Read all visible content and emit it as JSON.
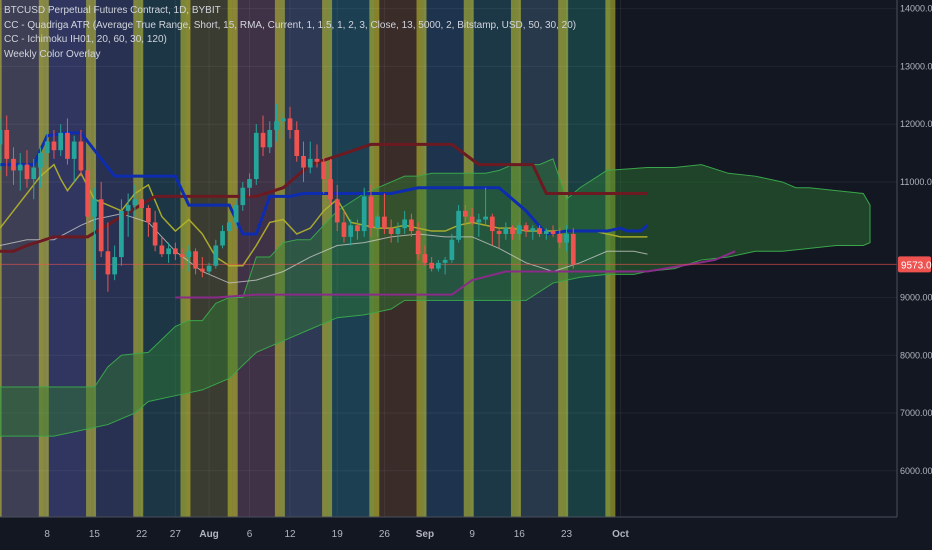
{
  "legend": {
    "title": "BTCUSD Perpetual Futures Contract, 1D, BYBIT",
    "indicator1": "CC - Quadriga ATR (Average True Range, Short, 15, RMA, Current, 1, 1.5, 1, 2, 3, Close, 13, 5000, 2, Bitstamp, USD, 50, 30, 20)",
    "indicator2": "CC - Ichimoku IH01, 20, 60, 30, 120)",
    "indicator3": "Weekly Color Overlay"
  },
  "colors": {
    "background": "#131722",
    "up_candle": "#26a69a",
    "down_candle": "#ef5350",
    "baseline": "#0d2cb0",
    "trend": "#6b1a22",
    "lower_band": "#8a2b8a",
    "cloud": "#2e7d32",
    "yellow_band": "#c8c830",
    "price_label": "#ef5350"
  },
  "chart_data": {
    "type": "candlestick",
    "x_tick_labels": [
      "8",
      "15",
      "22",
      "27",
      "Aug",
      "6",
      "12",
      "19",
      "26",
      "Sep",
      "9",
      "16",
      "23",
      "Oct"
    ],
    "y_tick_labels": [
      "14000.00",
      "13000.00",
      "12000.00",
      "11000.00",
      "9000.00",
      "8000.00",
      "7000.00",
      "6000.00"
    ],
    "y_ticks": [
      14000,
      13000,
      12000,
      11000,
      9000,
      8000,
      7000,
      6000
    ],
    "ylim": [
      5200,
      14150
    ],
    "xlim": [
      0,
      133
    ],
    "x_ticks": [
      7,
      14,
      21,
      26,
      31,
      37,
      43,
      50,
      57,
      63,
      70,
      77,
      84,
      92
    ],
    "last_price_label": "9573.00",
    "last_price": 9573,
    "candles": [
      [
        11650,
        12100,
        11200,
        11900
      ],
      [
        11900,
        12150,
        11100,
        11400
      ],
      [
        11400,
        11600,
        10950,
        11200
      ],
      [
        11200,
        11500,
        10850,
        11300
      ],
      [
        11300,
        11550,
        10900,
        11050
      ],
      [
        11050,
        11400,
        10700,
        11250
      ],
      [
        11250,
        11600,
        10900,
        11500
      ],
      [
        11500,
        11900,
        11300,
        11700
      ],
      [
        11700,
        11900,
        11400,
        11550
      ],
      [
        11550,
        12000,
        11450,
        11850
      ],
      [
        11850,
        12100,
        11300,
        11400
      ],
      [
        11400,
        11800,
        11000,
        11700
      ],
      [
        11700,
        11900,
        11100,
        11200
      ],
      [
        11200,
        11450,
        10200,
        10400
      ],
      [
        10400,
        10900,
        9300,
        10700
      ],
      [
        10700,
        11000,
        9700,
        9800
      ],
      [
        9800,
        10300,
        9100,
        9400
      ],
      [
        9400,
        9900,
        9300,
        9700
      ],
      [
        9700,
        10700,
        9550,
        10500
      ],
      [
        10500,
        10800,
        10050,
        10600
      ],
      [
        10600,
        10950,
        10400,
        10700
      ],
      [
        10700,
        10900,
        10400,
        10550
      ],
      [
        10550,
        10600,
        10050,
        10300
      ],
      [
        10300,
        10500,
        9800,
        9900
      ],
      [
        9900,
        10050,
        9700,
        9750
      ],
      [
        9750,
        9950,
        9600,
        9850
      ],
      [
        9850,
        9950,
        9650,
        9750
      ],
      [
        9750,
        9850,
        9500,
        9700
      ],
      [
        9700,
        9900,
        9450,
        9800
      ],
      [
        9800,
        9850,
        9400,
        9500
      ],
      [
        9500,
        9700,
        9350,
        9450
      ],
      [
        9450,
        9600,
        9400,
        9550
      ],
      [
        9550,
        10000,
        9500,
        9900
      ],
      [
        9900,
        10250,
        9850,
        10150
      ],
      [
        10150,
        10450,
        10000,
        10300
      ],
      [
        10300,
        10700,
        10200,
        10600
      ],
      [
        10600,
        11000,
        10500,
        10900
      ],
      [
        10900,
        11150,
        10750,
        11050
      ],
      [
        11050,
        12000,
        10950,
        11850
      ],
      [
        11850,
        12150,
        11450,
        11600
      ],
      [
        11600,
        12050,
        11500,
        11900
      ],
      [
        11900,
        12350,
        11700,
        12050
      ],
      [
        12050,
        12200,
        11750,
        12100
      ],
      [
        12100,
        12300,
        11750,
        11900
      ],
      [
        11900,
        12050,
        11350,
        11450
      ],
      [
        11450,
        11700,
        11000,
        11250
      ],
      [
        11250,
        11700,
        11150,
        11400
      ],
      [
        11400,
        11650,
        11250,
        11350
      ],
      [
        11350,
        11450,
        10800,
        11050
      ],
      [
        11050,
        11400,
        10600,
        10700
      ],
      [
        10700,
        10950,
        10150,
        10300
      ],
      [
        10300,
        10500,
        9950,
        10050
      ],
      [
        10050,
        10350,
        9900,
        10250
      ],
      [
        10250,
        10350,
        10000,
        10150
      ],
      [
        10150,
        10900,
        10050,
        10750
      ],
      [
        10750,
        10950,
        10050,
        10200
      ],
      [
        10200,
        10450,
        10050,
        10400
      ],
      [
        10400,
        10800,
        10100,
        10200
      ],
      [
        10200,
        10350,
        9950,
        10100
      ],
      [
        10100,
        10300,
        9950,
        10200
      ],
      [
        10200,
        10500,
        10100,
        10350
      ],
      [
        10350,
        10450,
        10050,
        10150
      ],
      [
        10150,
        10300,
        9650,
        9750
      ],
      [
        9750,
        9900,
        9550,
        9600
      ],
      [
        9600,
        9700,
        9450,
        9500
      ],
      [
        9500,
        9650,
        9450,
        9600
      ],
      [
        9600,
        9700,
        9400,
        9650
      ],
      [
        9650,
        10100,
        9600,
        10000
      ],
      [
        10000,
        10600,
        9950,
        10500
      ],
      [
        10500,
        10600,
        10250,
        10400
      ],
      [
        10400,
        10550,
        10250,
        10300
      ],
      [
        10300,
        10450,
        10050,
        10350
      ],
      [
        10350,
        10900,
        10250,
        10400
      ],
      [
        10400,
        10450,
        9900,
        10150
      ],
      [
        10150,
        10200,
        9850,
        10100
      ],
      [
        10100,
        10300,
        10000,
        10200
      ],
      [
        10200,
        10250,
        10000,
        10100
      ],
      [
        10100,
        10300,
        10000,
        10250
      ],
      [
        10250,
        10300,
        10050,
        10150
      ],
      [
        10150,
        10250,
        10000,
        10200
      ],
      [
        10200,
        10250,
        10050,
        10100
      ],
      [
        10100,
        10200,
        10000,
        10150
      ],
      [
        10150,
        10250,
        10050,
        10100
      ],
      [
        10100,
        10200,
        9850,
        9950
      ],
      [
        9950,
        10250,
        9800,
        10100
      ],
      [
        10100,
        10200,
        9500,
        9573
      ]
    ],
    "baseline": [
      [
        0,
        11300
      ],
      [
        5,
        11300
      ],
      [
        7,
        11800
      ],
      [
        10,
        11850
      ],
      [
        12,
        11850
      ],
      [
        17,
        11100
      ],
      [
        20,
        11100
      ],
      [
        21,
        11100
      ],
      [
        22,
        11100
      ],
      [
        26,
        11100
      ],
      [
        28,
        10600
      ],
      [
        34,
        10600
      ],
      [
        36,
        10100
      ],
      [
        38,
        10100
      ],
      [
        40,
        10750
      ],
      [
        43,
        10750
      ],
      [
        45,
        10800
      ],
      [
        58,
        10800
      ],
      [
        62,
        10900
      ],
      [
        74,
        10900
      ],
      [
        78,
        10500
      ],
      [
        81,
        10100
      ],
      [
        84,
        10150
      ],
      [
        87,
        10150
      ],
      [
        90,
        10150
      ],
      [
        92,
        10200
      ],
      [
        93,
        10150
      ],
      [
        95,
        10150
      ],
      [
        96,
        10250
      ]
    ],
    "trend": [
      [
        0,
        9800
      ],
      [
        2,
        9800
      ],
      [
        4,
        9900
      ],
      [
        8,
        10050
      ],
      [
        12,
        10050
      ],
      [
        13,
        10050
      ],
      [
        23,
        10750
      ],
      [
        29,
        10750
      ],
      [
        34,
        10750
      ],
      [
        38,
        10750
      ],
      [
        42,
        10900
      ],
      [
        46,
        11300
      ],
      [
        50,
        11450
      ],
      [
        55,
        11650
      ],
      [
        67,
        11650
      ],
      [
        71,
        11300
      ],
      [
        75,
        11300
      ],
      [
        79,
        11300
      ],
      [
        81,
        10800
      ],
      [
        96,
        10800
      ]
    ],
    "lower_band": [
      [
        26,
        9000
      ],
      [
        32,
        9000
      ],
      [
        38,
        9050
      ],
      [
        45,
        9050
      ],
      [
        55,
        9050
      ],
      [
        67,
        9050
      ],
      [
        70,
        9300
      ],
      [
        75,
        9450
      ],
      [
        83,
        9450
      ],
      [
        89,
        9450
      ],
      [
        96,
        9450
      ],
      [
        101,
        9550
      ],
      [
        106,
        9650
      ],
      [
        109,
        9800
      ]
    ],
    "yellow_band": [
      [
        0,
        10200
      ],
      [
        2,
        10500
      ],
      [
        4,
        10800
      ],
      [
        6,
        11100
      ],
      [
        8,
        11300
      ],
      [
        9,
        11050
      ],
      [
        10,
        10850
      ],
      [
        12,
        11150
      ],
      [
        14,
        10700
      ],
      [
        16,
        10600
      ],
      [
        18,
        10500
      ],
      [
        20,
        10800
      ],
      [
        22,
        10950
      ],
      [
        24,
        10400
      ],
      [
        26,
        10150
      ],
      [
        28,
        10350
      ],
      [
        30,
        10100
      ],
      [
        32,
        9700
      ],
      [
        34,
        9550
      ],
      [
        36,
        9550
      ],
      [
        38,
        9900
      ],
      [
        40,
        10300
      ],
      [
        42,
        10350
      ],
      [
        44,
        10100
      ],
      [
        46,
        10200
      ],
      [
        48,
        10500
      ],
      [
        50,
        10700
      ],
      [
        52,
        10300
      ],
      [
        54,
        10250
      ],
      [
        56,
        10200
      ],
      [
        58,
        10200
      ],
      [
        60,
        10250
      ],
      [
        62,
        10200
      ],
      [
        64,
        10150
      ],
      [
        66,
        10150
      ],
      [
        68,
        10250
      ],
      [
        70,
        10300
      ],
      [
        72,
        10250
      ],
      [
        74,
        10200
      ],
      [
        76,
        10200
      ],
      [
        78,
        10150
      ],
      [
        80,
        10150
      ],
      [
        82,
        10150
      ],
      [
        84,
        10150
      ],
      [
        86,
        10150
      ],
      [
        88,
        10150
      ],
      [
        90,
        10100
      ],
      [
        92,
        10050
      ],
      [
        94,
        10050
      ],
      [
        96,
        10050
      ]
    ],
    "white_line": [
      [
        0,
        9900
      ],
      [
        4,
        10000
      ],
      [
        8,
        10000
      ],
      [
        12,
        10250
      ],
      [
        14,
        10350
      ],
      [
        18,
        10450
      ],
      [
        22,
        10300
      ],
      [
        26,
        9800
      ],
      [
        30,
        9450
      ],
      [
        34,
        9250
      ],
      [
        38,
        9300
      ],
      [
        42,
        9450
      ],
      [
        46,
        9700
      ],
      [
        50,
        9900
      ],
      [
        54,
        9950
      ],
      [
        58,
        10050
      ],
      [
        62,
        10100
      ],
      [
        66,
        10050
      ],
      [
        70,
        10050
      ],
      [
        74,
        9850
      ],
      [
        78,
        9600
      ],
      [
        82,
        9450
      ],
      [
        86,
        9600
      ],
      [
        90,
        9800
      ],
      [
        94,
        9800
      ],
      [
        96,
        9750
      ]
    ],
    "cloud_top": [
      [
        0,
        7450
      ],
      [
        8,
        7450
      ],
      [
        14,
        7450
      ],
      [
        16,
        7800
      ],
      [
        18,
        8000
      ],
      [
        22,
        8050
      ],
      [
        26,
        8500
      ],
      [
        28,
        8600
      ],
      [
        30,
        8600
      ],
      [
        32,
        8900
      ],
      [
        34,
        9000
      ],
      [
        36,
        9000
      ],
      [
        38,
        9700
      ],
      [
        40,
        9700
      ],
      [
        42,
        9950
      ],
      [
        44,
        10000
      ],
      [
        46,
        10000
      ],
      [
        50,
        10500
      ],
      [
        54,
        10800
      ],
      [
        58,
        11000
      ],
      [
        60,
        11100
      ],
      [
        62,
        11100
      ],
      [
        64,
        11150
      ],
      [
        66,
        11150
      ],
      [
        68,
        11150
      ],
      [
        70,
        11150
      ],
      [
        72,
        11150
      ],
      [
        74,
        11200
      ],
      [
        76,
        11300
      ],
      [
        78,
        11300
      ],
      [
        80,
        11300
      ],
      [
        82,
        11400
      ],
      [
        84,
        10700
      ],
      [
        86,
        10900
      ],
      [
        90,
        11200
      ],
      [
        96,
        11250
      ],
      [
        100,
        11250
      ],
      [
        104,
        11300
      ],
      [
        108,
        11150
      ],
      [
        112,
        11100
      ],
      [
        116,
        11000
      ],
      [
        118,
        10900
      ],
      [
        120,
        10900
      ],
      [
        124,
        10850
      ],
      [
        128,
        10800
      ],
      [
        129,
        10600
      ]
    ],
    "cloud_bottom": [
      [
        0,
        6600
      ],
      [
        8,
        6600
      ],
      [
        12,
        6700
      ],
      [
        16,
        6800
      ],
      [
        20,
        7000
      ],
      [
        22,
        7200
      ],
      [
        26,
        7300
      ],
      [
        30,
        7400
      ],
      [
        34,
        7600
      ],
      [
        38,
        8050
      ],
      [
        40,
        8150
      ],
      [
        44,
        8350
      ],
      [
        46,
        8450
      ],
      [
        50,
        8650
      ],
      [
        54,
        8700
      ],
      [
        58,
        8800
      ],
      [
        60,
        8950
      ],
      [
        62,
        8950
      ],
      [
        70,
        8950
      ],
      [
        78,
        8950
      ],
      [
        82,
        9250
      ],
      [
        86,
        9350
      ],
      [
        90,
        9400
      ],
      [
        94,
        9400
      ],
      [
        96,
        9450
      ],
      [
        100,
        9500
      ],
      [
        104,
        9650
      ],
      [
        108,
        9700
      ],
      [
        112,
        9800
      ],
      [
        116,
        9800
      ],
      [
        120,
        9850
      ],
      [
        124,
        9900
      ],
      [
        128,
        9900
      ],
      [
        129,
        9950
      ]
    ],
    "weekly_band_colors": [
      "#44445a",
      "#343a66",
      "#2b3456",
      "#1e3a4a",
      "#3f3f33",
      "#45354a",
      "#323d5b",
      "#1e4458",
      "#3e2f2a",
      "#203753",
      "#1e3c4a",
      "#2a3d4f",
      "#1b4447"
    ]
  }
}
